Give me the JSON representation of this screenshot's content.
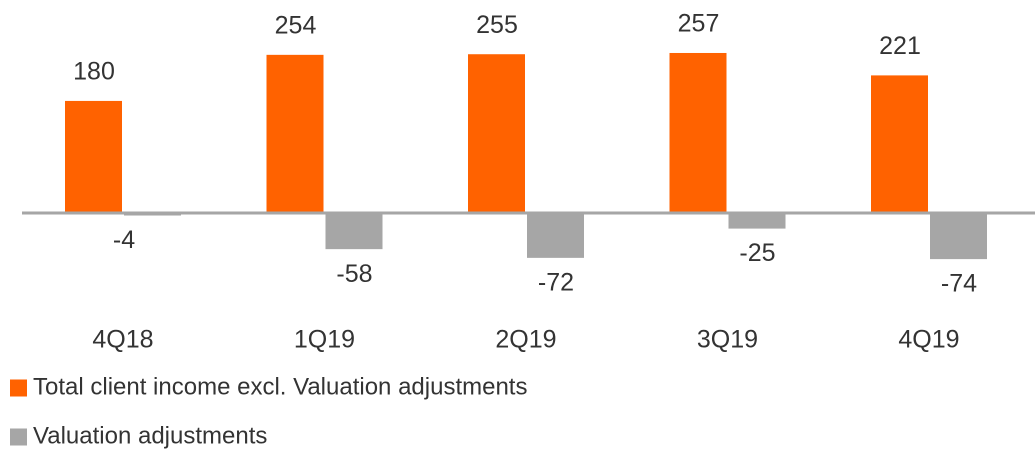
{
  "chart_data": {
    "type": "bar",
    "categories": [
      "4Q18",
      "1Q19",
      "2Q19",
      "3Q19",
      "4Q19"
    ],
    "series": [
      {
        "name": "Total client income excl. Valuation adjustments",
        "color": "#ff6200",
        "values": [
          180,
          254,
          255,
          257,
          221
        ]
      },
      {
        "name": "Valuation adjustments",
        "color": "#a6a6a6",
        "values": [
          -4,
          -58,
          -72,
          -25,
          -74
        ]
      }
    ],
    "ylim": [
      -100,
      300
    ],
    "legend": "bottom"
  }
}
